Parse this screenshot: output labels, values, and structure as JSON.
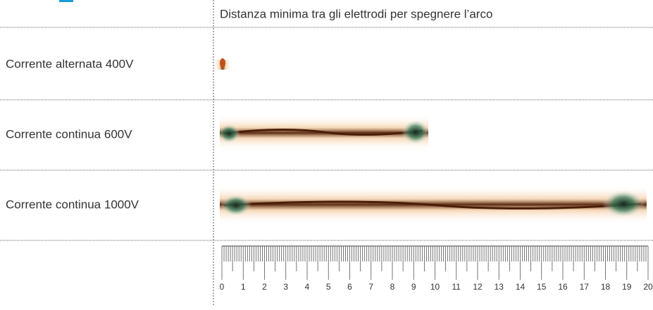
{
  "header": {
    "title": "Distanza minima tra gli elettrodi per spegnere l’arco"
  },
  "rows": [
    {
      "label": "Corrente alternata 400V"
    },
    {
      "label": "Corrente continua 600V"
    },
    {
      "label": "Corrente continua 1000V"
    }
  ],
  "ruler": {
    "labels": [
      0,
      1,
      2,
      3,
      4,
      5,
      6,
      7,
      8,
      9,
      10,
      11,
      12,
      13,
      14,
      15,
      16,
      17,
      18,
      19,
      20
    ]
  }
}
